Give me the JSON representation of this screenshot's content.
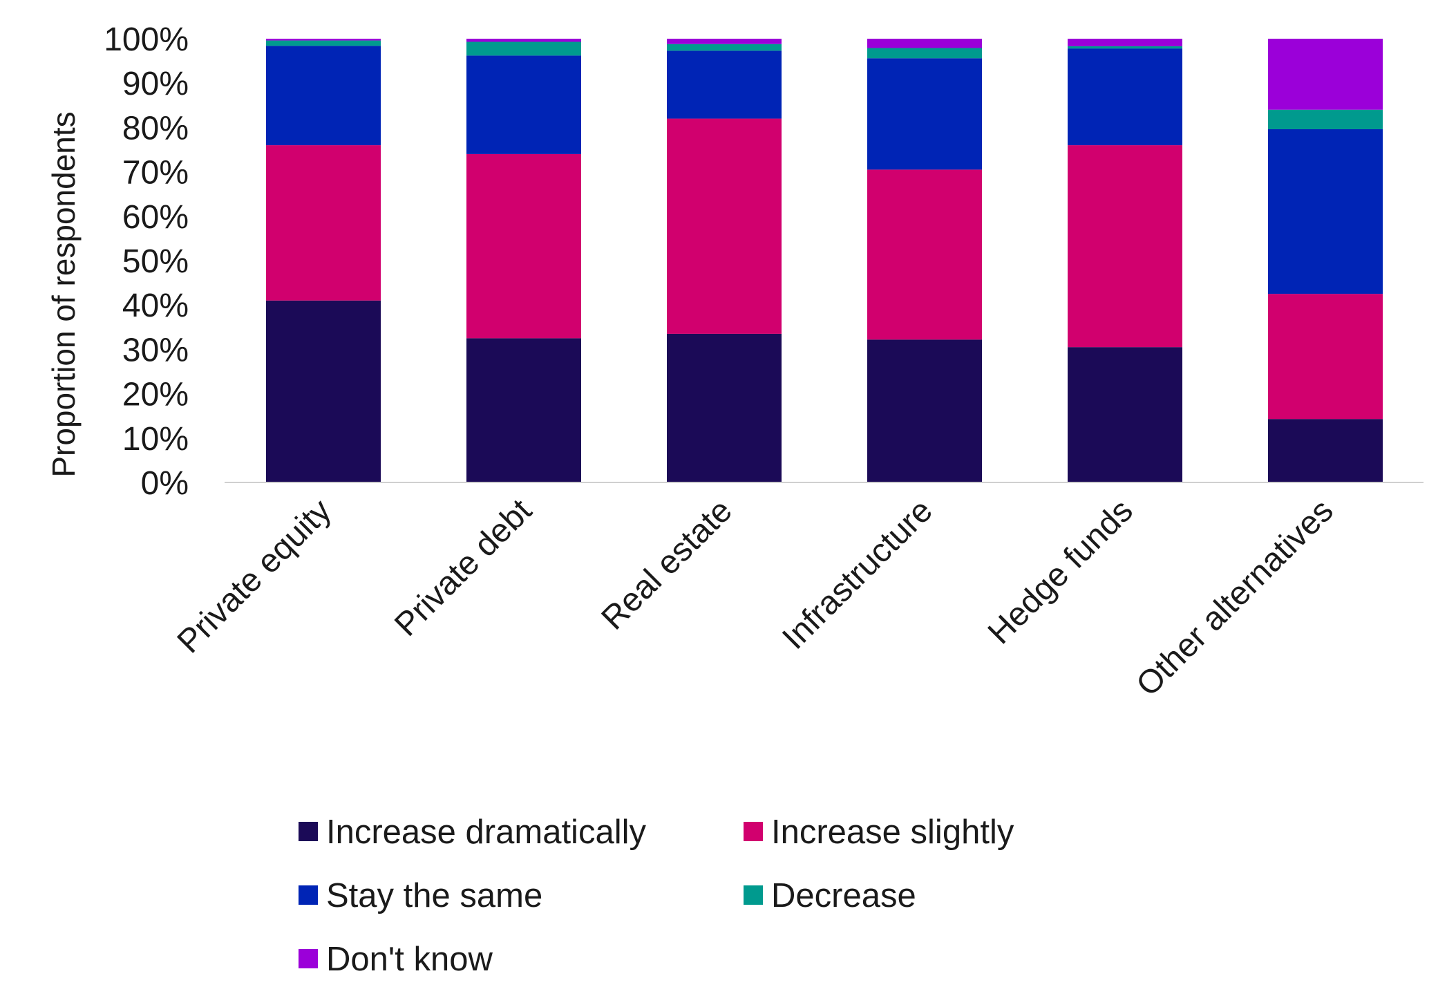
{
  "chart_data": {
    "type": "bar",
    "stacked": true,
    "categories": [
      "Private equity",
      "Private debt",
      "Real estate",
      "Infrastructure",
      "Hedge funds",
      "Other alternatives"
    ],
    "series": [
      {
        "name": "Increase dramatically",
        "color": "#1b0a57",
        "values": [
          41,
          32.5,
          33.5,
          32.2,
          30.5,
          14.3
        ]
      },
      {
        "name": "Increase slightly",
        "color": "#d1006e",
        "values": [
          35,
          41.5,
          48.5,
          38.3,
          45.5,
          28.2
        ]
      },
      {
        "name": "Stay the same",
        "color": "#0024b5",
        "values": [
          22.4,
          22.2,
          15.3,
          25.1,
          21.8,
          37.1
        ]
      },
      {
        "name": "Decrease",
        "color": "#009a8e",
        "values": [
          1.2,
          3.1,
          1.5,
          2.3,
          0.5,
          4.4
        ]
      },
      {
        "name": "Don't know",
        "color": "#9b00d9",
        "values": [
          0.4,
          0.7,
          1.2,
          2.1,
          1.7,
          16
        ]
      }
    ],
    "ylabel": "Proportion of respondents",
    "xlabel": "",
    "ylim": [
      0,
      100
    ],
    "yticks": [
      "0%",
      "10%",
      "20%",
      "30%",
      "40%",
      "50%",
      "60%",
      "70%",
      "80%",
      "90%",
      "100%"
    ],
    "grid": false,
    "legend_position": "bottom"
  }
}
